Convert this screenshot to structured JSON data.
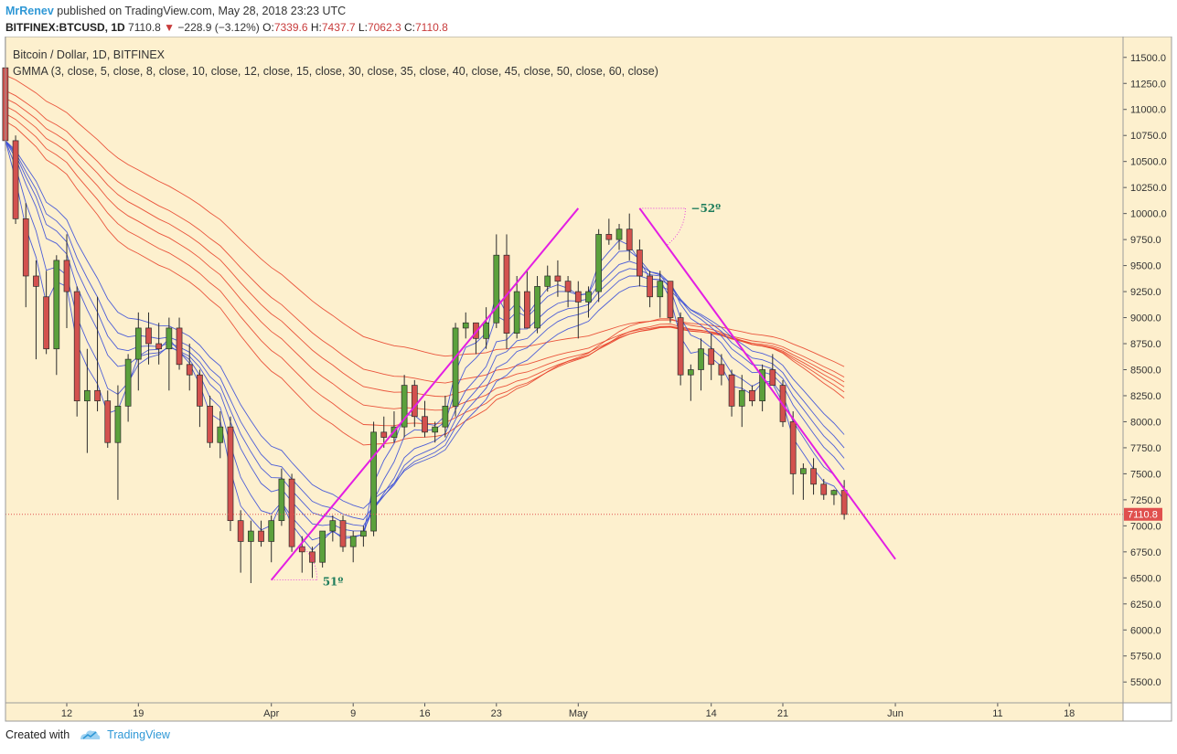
{
  "header": {
    "author": "MrRenev",
    "published": "published on TradingView.com, May 28, 2018 23:23 UTC",
    "symbol": "BITFINEX:BTCUSD, 1D",
    "last": "7110.8",
    "arrow": "▼",
    "change": "−228.9 (−3.12%)",
    "o_label": "O:",
    "o_value": "7339.6",
    "h_label": "H:",
    "h_value": "7437.7",
    "l_label": "L:",
    "l_value": "7062.3",
    "c_label": "C:",
    "c_value": "7110.8"
  },
  "chart_data": {
    "type": "candlestick",
    "title": "Bitcoin / Dollar, 1D, BITFINEX",
    "indicator": "GMMA (3, close, 5, close, 8, close, 10, close, 12, close, 15, close, 30, close, 35, close, 40, close, 45, close, 50, close, 60, close)",
    "ylim": [
      5300,
      11700
    ],
    "yticks": [
      "11500.0",
      "11250.0",
      "11000.0",
      "10750.0",
      "10500.0",
      "10250.0",
      "10000.0",
      "9750.0",
      "9500.0",
      "9250.0",
      "9000.0",
      "8750.0",
      "8500.0",
      "8250.0",
      "8000.0",
      "7750.0",
      "7500.0",
      "7250.0",
      "7000.0",
      "6750.0",
      "6500.0",
      "6250.0",
      "6000.0",
      "5750.0",
      "5500.0"
    ],
    "xticks": [
      {
        "label": "12",
        "day": 12
      },
      {
        "label": "19",
        "day": 19
      },
      {
        "label": "Apr",
        "day": 32
      },
      {
        "label": "9",
        "day": 40
      },
      {
        "label": "16",
        "day": 47
      },
      {
        "label": "23",
        "day": 54
      },
      {
        "label": "May",
        "day": 62
      },
      {
        "label": "14",
        "day": 75
      },
      {
        "label": "21",
        "day": 82
      },
      {
        "label": "Jun",
        "day": 93
      },
      {
        "label": "11",
        "day": 103
      },
      {
        "label": "18",
        "day": 110
      }
    ],
    "last_price_label": "7110.8",
    "candles_start_day": 6,
    "candles": [
      [
        11400,
        11700,
        10600,
        10700
      ],
      [
        10700,
        10750,
        9900,
        9950
      ],
      [
        9950,
        10100,
        9100,
        9400
      ],
      [
        9400,
        9550,
        8600,
        9300
      ],
      [
        9200,
        9450,
        8650,
        8700
      ],
      [
        8700,
        9600,
        8450,
        9550
      ],
      [
        9550,
        9800,
        8900,
        9250
      ],
      [
        9250,
        9300,
        8050,
        8200
      ],
      [
        8200,
        8700,
        7700,
        8300
      ],
      [
        8300,
        9200,
        8100,
        8200
      ],
      [
        8200,
        8300,
        7750,
        7800
      ],
      [
        7800,
        8350,
        7250,
        8150
      ],
      [
        8150,
        8650,
        8000,
        8600
      ],
      [
        8600,
        9050,
        8300,
        8900
      ],
      [
        8900,
        9050,
        8550,
        8750
      ],
      [
        8750,
        8950,
        8550,
        8700
      ],
      [
        8700,
        9000,
        8300,
        8900
      ],
      [
        8900,
        9000,
        8500,
        8550
      ],
      [
        8550,
        8750,
        8300,
        8450
      ],
      [
        8450,
        8500,
        7950,
        8150
      ],
      [
        8150,
        8250,
        7750,
        7800
      ],
      [
        7800,
        8100,
        7650,
        7950
      ],
      [
        7950,
        8050,
        6950,
        7050
      ],
      [
        7050,
        7150,
        6550,
        6850
      ],
      [
        6850,
        7050,
        6450,
        6950
      ],
      [
        6950,
        7050,
        6800,
        6850
      ],
      [
        6850,
        7100,
        6650,
        7050
      ],
      [
        7050,
        7550,
        7000,
        7450
      ],
      [
        7450,
        7500,
        6750,
        6800
      ],
      [
        6800,
        6900,
        6550,
        6750
      ],
      [
        6750,
        6800,
        6500,
        6650
      ],
      [
        6650,
        6950,
        6600,
        6950
      ],
      [
        6950,
        7100,
        6850,
        7050
      ],
      [
        7050,
        7100,
        6750,
        6800
      ],
      [
        6800,
        6950,
        6650,
        6900
      ],
      [
        6900,
        7000,
        6800,
        6950
      ],
      [
        6950,
        8000,
        6900,
        7900
      ],
      [
        7900,
        8050,
        7750,
        7850
      ],
      [
        7850,
        8100,
        7800,
        7950
      ],
      [
        7950,
        8450,
        7850,
        8350
      ],
      [
        8350,
        8400,
        7950,
        8050
      ],
      [
        8050,
        8200,
        7850,
        7900
      ],
      [
        7900,
        8000,
        7800,
        7950
      ],
      [
        7950,
        8250,
        7850,
        8150
      ],
      [
        8150,
        8950,
        8050,
        8900
      ],
      [
        8900,
        9050,
        8800,
        8950
      ],
      [
        8950,
        8950,
        8650,
        8800
      ],
      [
        8800,
        9100,
        8700,
        8950
      ],
      [
        8950,
        9800,
        8900,
        9600
      ],
      [
        9600,
        9800,
        8700,
        8850
      ],
      [
        8850,
        9400,
        8800,
        9250
      ],
      [
        9250,
        9450,
        8900,
        8900
      ],
      [
        8900,
        9400,
        8850,
        9300
      ],
      [
        9300,
        9500,
        9250,
        9400
      ],
      [
        9400,
        9550,
        9200,
        9350
      ],
      [
        9350,
        9400,
        9100,
        9250
      ],
      [
        9250,
        9350,
        8800,
        9150
      ],
      [
        9150,
        9300,
        9000,
        9250
      ],
      [
        9250,
        9850,
        9150,
        9800
      ],
      [
        9800,
        9950,
        9700,
        9750
      ],
      [
        9750,
        9900,
        9650,
        9850
      ],
      [
        9850,
        10000,
        9550,
        9650
      ],
      [
        9650,
        9750,
        9300,
        9400
      ],
      [
        9400,
        9450,
        9100,
        9200
      ],
      [
        9200,
        9450,
        9000,
        9350
      ],
      [
        9350,
        9350,
        8950,
        9000
      ],
      [
        9000,
        9050,
        8350,
        8450
      ],
      [
        8450,
        8550,
        8200,
        8500
      ],
      [
        8500,
        8800,
        8300,
        8700
      ],
      [
        8700,
        8850,
        8400,
        8550
      ],
      [
        8550,
        8650,
        8350,
        8450
      ],
      [
        8450,
        8500,
        8050,
        8150
      ],
      [
        8150,
        8450,
        7950,
        8300
      ],
      [
        8300,
        8350,
        8150,
        8200
      ],
      [
        8200,
        8550,
        8100,
        8500
      ],
      [
        8500,
        8650,
        8400,
        8350
      ],
      [
        8350,
        8400,
        7950,
        8000
      ],
      [
        8000,
        8100,
        7300,
        7500
      ],
      [
        7500,
        7600,
        7250,
        7550
      ],
      [
        7550,
        7650,
        7300,
        7400
      ],
      [
        7400,
        7450,
        7250,
        7300
      ],
      [
        7300,
        7350,
        7200,
        7340
      ],
      [
        7340,
        7440,
        7060,
        7110
      ]
    ],
    "trendlines": [
      {
        "from": [
          32,
          6480
        ],
        "to": [
          62,
          10050
        ],
        "angle_label": "51º"
      },
      {
        "from": [
          68,
          10050
        ],
        "to": [
          93,
          6680
        ],
        "angle_label": "−52º"
      }
    ],
    "gmma_short_periods": [
      3,
      5,
      8,
      10,
      12,
      15
    ],
    "gmma_long_periods": [
      30,
      35,
      40,
      45,
      50,
      60
    ],
    "colors": {
      "background": "#fdf0ce",
      "up_candle": "#5ba13c",
      "down_candle": "#d3514e",
      "short_ema": "#3a4ed8",
      "long_ema": "#e8432b",
      "trendline": "#e31ee3",
      "angle_label": "#1f7d5c",
      "price_tag": "#e0504e"
    }
  },
  "footer": {
    "created_with": "Created with",
    "brand": "TradingView"
  }
}
